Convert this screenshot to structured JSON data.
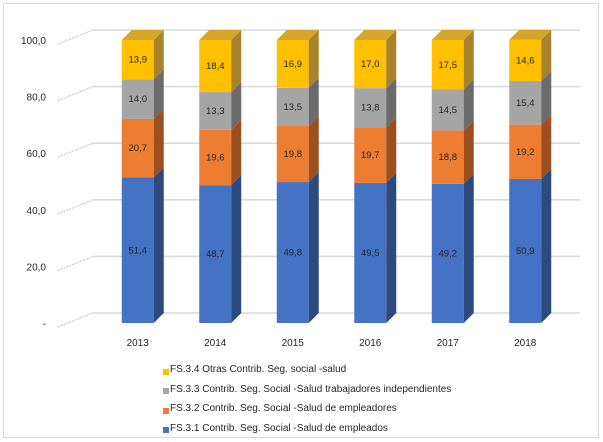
{
  "chart_data": {
    "type": "bar",
    "stacked": true,
    "three_d": true,
    "title": "",
    "xlabel": "",
    "ylabel": "",
    "categories": [
      "2013",
      "2014",
      "2015",
      "2016",
      "2017",
      "2018"
    ],
    "ylim": [
      0,
      100
    ],
    "y_ticks": [
      0,
      20,
      40,
      60,
      80,
      100
    ],
    "y_tick_labels": [
      "-",
      "20,0",
      "40,0",
      "60,0",
      "80,0",
      "100,0"
    ],
    "grid": true,
    "legend_position": "bottom",
    "series": [
      {
        "name": "FS.3.1 Contrib. Seg. Social -Salud de empleados",
        "color": "#4472c4",
        "side_color": "#2a4a80",
        "values": [
          51.4,
          48.7,
          49.8,
          49.5,
          49.2,
          50.9
        ],
        "labels": [
          "51,4",
          "48,7",
          "49,8",
          "49,5",
          "49,2",
          "50,9"
        ]
      },
      {
        "name": "FS.3.2 Contrib. Seg. Social -Salud de empleadores",
        "color": "#ed7d31",
        "side_color": "#9e4f20",
        "values": [
          20.7,
          19.6,
          19.8,
          19.7,
          18.8,
          19.2
        ],
        "labels": [
          "20,7",
          "19,6",
          "19,8",
          "19,7",
          "18,8",
          "19,2"
        ]
      },
      {
        "name": "FS.3.3 Contrib. Seg. Social -Salud trabajadores independientes",
        "color": "#a5a5a5",
        "side_color": "#6b6b6b",
        "values": [
          14.0,
          13.3,
          13.5,
          13.8,
          14.5,
          15.4
        ],
        "labels": [
          "14,0",
          "13,3",
          "13,5",
          "13,8",
          "14,5",
          "15,4"
        ]
      },
      {
        "name": "FS.3.4 Otras Contrib. Seg. social -salud",
        "color": "#ffc000",
        "side_color": "#a8832a",
        "values": [
          13.9,
          18.4,
          16.9,
          17.0,
          17.5,
          14.6
        ],
        "labels": [
          "13,9",
          "18,4",
          "16,9",
          "17,0",
          "17,5",
          "14,6"
        ]
      }
    ],
    "legend_order": [
      3,
      2,
      1,
      0
    ]
  }
}
